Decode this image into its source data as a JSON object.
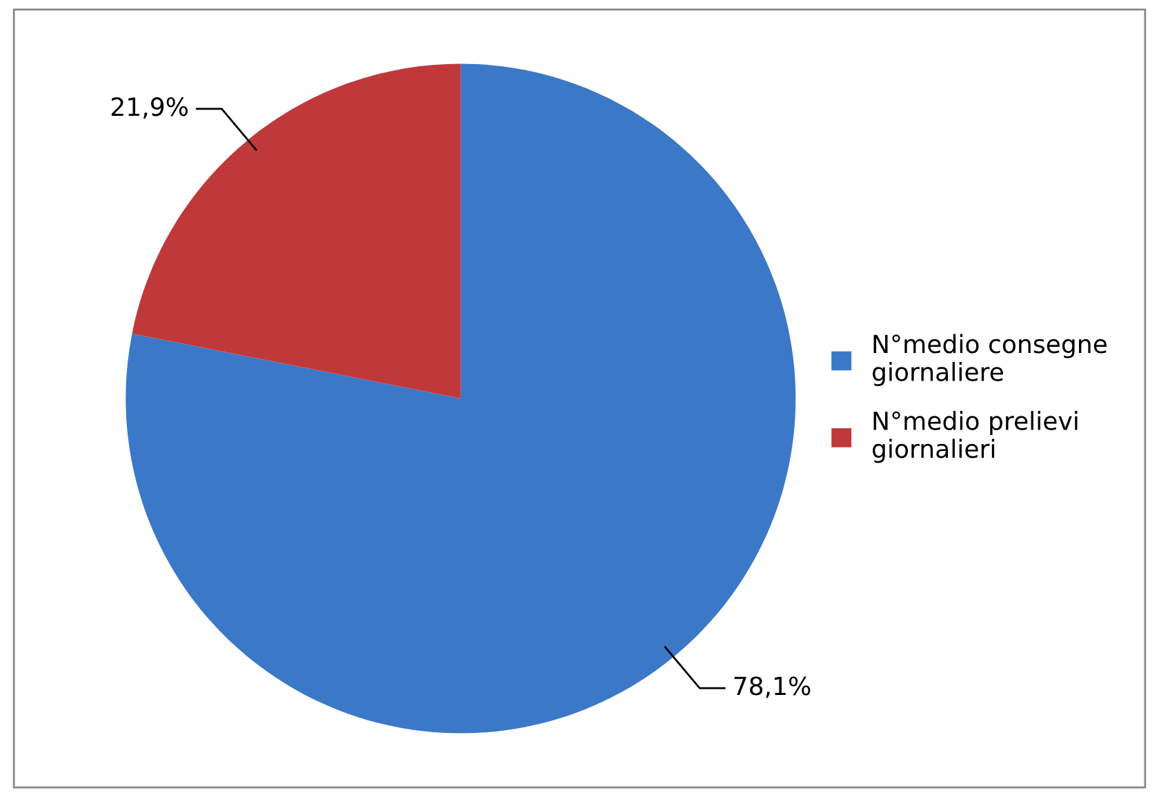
{
  "chart_data": {
    "type": "pie",
    "categories": [
      "N°medio consegne giornaliere",
      "N°medio prelievi giornalieri"
    ],
    "values": [
      78.1,
      21.9
    ],
    "colors": [
      "#3b78c8",
      "#c0393a"
    ],
    "value_labels": [
      "78,1%",
      "21,9%"
    ],
    "legend": "right"
  }
}
